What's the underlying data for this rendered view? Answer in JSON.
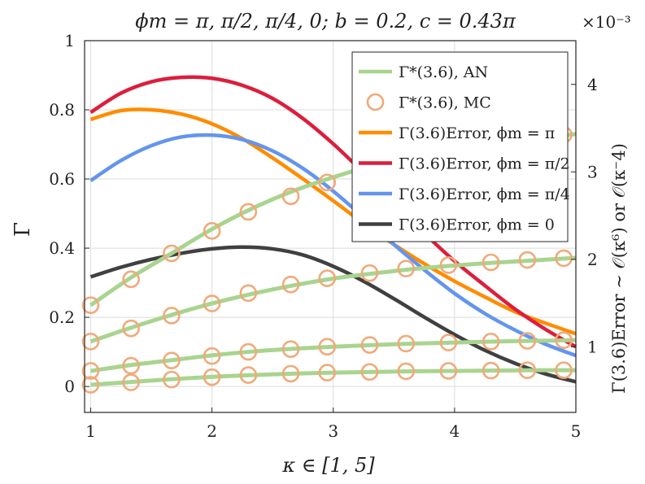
{
  "chart_data": {
    "type": "line",
    "title": "ϕm = π, π/2, π/4, 0; b = 0.2, c = 0.43π",
    "xlabel": "κ ∈ [1, 5]",
    "ylabel_left": "Γ",
    "ylabel_right": "Γ(3.6)Error ∼ 𝒪(κ⁶) or 𝒪(κ⁻4)",
    "right_axis_exponent": "×10⁻³",
    "xlim": [
      0.95,
      5
    ],
    "ylim_left": [
      -0.075,
      1.0
    ],
    "ylim_right": [
      0.25,
      4.5
    ],
    "grid": true,
    "x_ticks": [
      "1",
      "2",
      "3",
      "4",
      "5"
    ],
    "y_ticks_left": [
      "0",
      "0.2",
      "0.4",
      "0.6",
      "0.8",
      "1"
    ],
    "y_ticks_right": [
      "1",
      "2",
      "3",
      "4"
    ],
    "legend_position": "top-right",
    "colors": {
      "analytic": "#a9d48f",
      "mc": "#f0aa7a",
      "err_pi": "#ff8c00",
      "err_pi2": "#dc1e3c",
      "err_pi4": "#6495ed",
      "err_0": "#404040"
    },
    "legend": [
      {
        "key": "analytic",
        "label": "Γ*(3.6), AN",
        "style": "line"
      },
      {
        "key": "mc",
        "label": "Γ*(3.6), MC",
        "style": "marker"
      },
      {
        "key": "err_pi",
        "label": "Γ(3.6)Error, ϕm = π",
        "style": "line"
      },
      {
        "key": "err_pi2",
        "label": "Γ(3.6)Error, ϕm = π/2",
        "style": "line"
      },
      {
        "key": "err_pi4",
        "label": "Γ(3.6)Error, ϕm = π/4",
        "style": "line"
      },
      {
        "key": "err_0",
        "label": "Γ(3.6)Error, ϕm = 0",
        "style": "line"
      }
    ],
    "x": [
      1.0,
      1.333,
      1.667,
      2.0,
      2.333,
      2.667,
      3.0,
      3.333,
      3.667,
      4.0,
      4.333,
      4.667,
      5.0
    ],
    "analytic_series": [
      {
        "phi": "π",
        "values": [
          0.235,
          0.315,
          0.385,
          0.455,
          0.515,
          0.565,
          0.605,
          0.64,
          0.665,
          0.685,
          0.7,
          0.715,
          0.73
        ]
      },
      {
        "phi": "π/2",
        "values": [
          0.13,
          0.17,
          0.207,
          0.24,
          0.268,
          0.292,
          0.312,
          0.327,
          0.34,
          0.35,
          0.358,
          0.365,
          0.372
        ]
      },
      {
        "phi": "π/4",
        "values": [
          0.045,
          0.062,
          0.076,
          0.09,
          0.101,
          0.109,
          0.115,
          0.12,
          0.124,
          0.127,
          0.13,
          0.132,
          0.134
        ]
      },
      {
        "phi": "0",
        "values": [
          0.005,
          0.013,
          0.021,
          0.028,
          0.033,
          0.037,
          0.04,
          0.042,
          0.044,
          0.045,
          0.046,
          0.047,
          0.047
        ]
      }
    ],
    "mc_x": [
      1.0,
      1.333,
      1.667,
      2.0,
      2.3,
      2.65,
      2.95,
      3.3,
      3.6,
      3.95,
      4.3,
      4.6,
      4.9
    ],
    "mc_series": [
      {
        "phi": "π",
        "values": [
          0.235,
          0.31,
          0.385,
          0.45,
          0.505,
          0.55,
          0.59,
          0.625,
          0.655,
          0.68,
          0.7,
          0.715,
          0.728
        ]
      },
      {
        "phi": "π/2",
        "values": [
          0.13,
          0.168,
          0.205,
          0.24,
          0.27,
          0.295,
          0.313,
          0.328,
          0.341,
          0.351,
          0.359,
          0.366,
          0.371
        ]
      },
      {
        "phi": "π/4",
        "values": [
          0.045,
          0.06,
          0.075,
          0.088,
          0.1,
          0.108,
          0.115,
          0.12,
          0.124,
          0.127,
          0.13,
          0.132,
          0.134
        ]
      },
      {
        "phi": "0",
        "values": [
          0.005,
          0.012,
          0.02,
          0.027,
          0.033,
          0.037,
          0.04,
          0.042,
          0.044,
          0.045,
          0.046,
          0.047,
          0.047
        ]
      }
    ],
    "error_x": [
      1.0,
      1.25,
      1.5,
      1.75,
      2.0,
      2.25,
      2.5,
      2.75,
      3.0,
      3.25,
      3.5,
      3.75,
      4.0,
      4.25,
      4.5,
      4.75,
      5.0
    ],
    "error_series": [
      {
        "key": "err_pi",
        "name": "ϕm = π",
        "axis": "right",
        "values": [
          3.6,
          3.7,
          3.71,
          3.66,
          3.55,
          3.38,
          3.16,
          2.92,
          2.67,
          2.41,
          2.17,
          1.95,
          1.75,
          1.57,
          1.4,
          1.27,
          1.15
        ]
      },
      {
        "key": "err_pi2",
        "name": "ϕm = π/2",
        "axis": "right",
        "values": [
          3.68,
          3.9,
          4.03,
          4.08,
          4.07,
          3.99,
          3.84,
          3.61,
          3.32,
          2.99,
          2.65,
          2.3,
          1.98,
          1.7,
          1.43,
          1.2,
          1.0
        ]
      },
      {
        "key": "err_pi4",
        "name": "ϕm = π/4",
        "axis": "right",
        "values": [
          2.9,
          3.13,
          3.3,
          3.4,
          3.42,
          3.37,
          3.24,
          3.04,
          2.78,
          2.48,
          2.17,
          1.88,
          1.61,
          1.38,
          1.19,
          1.03,
          0.9
        ]
      },
      {
        "key": "err_0",
        "name": "ϕm = 0",
        "axis": "right",
        "values": [
          1.8,
          1.91,
          2.0,
          2.07,
          2.12,
          2.14,
          2.12,
          2.05,
          1.92,
          1.75,
          1.55,
          1.34,
          1.14,
          0.96,
          0.81,
          0.69,
          0.6
        ]
      }
    ]
  }
}
